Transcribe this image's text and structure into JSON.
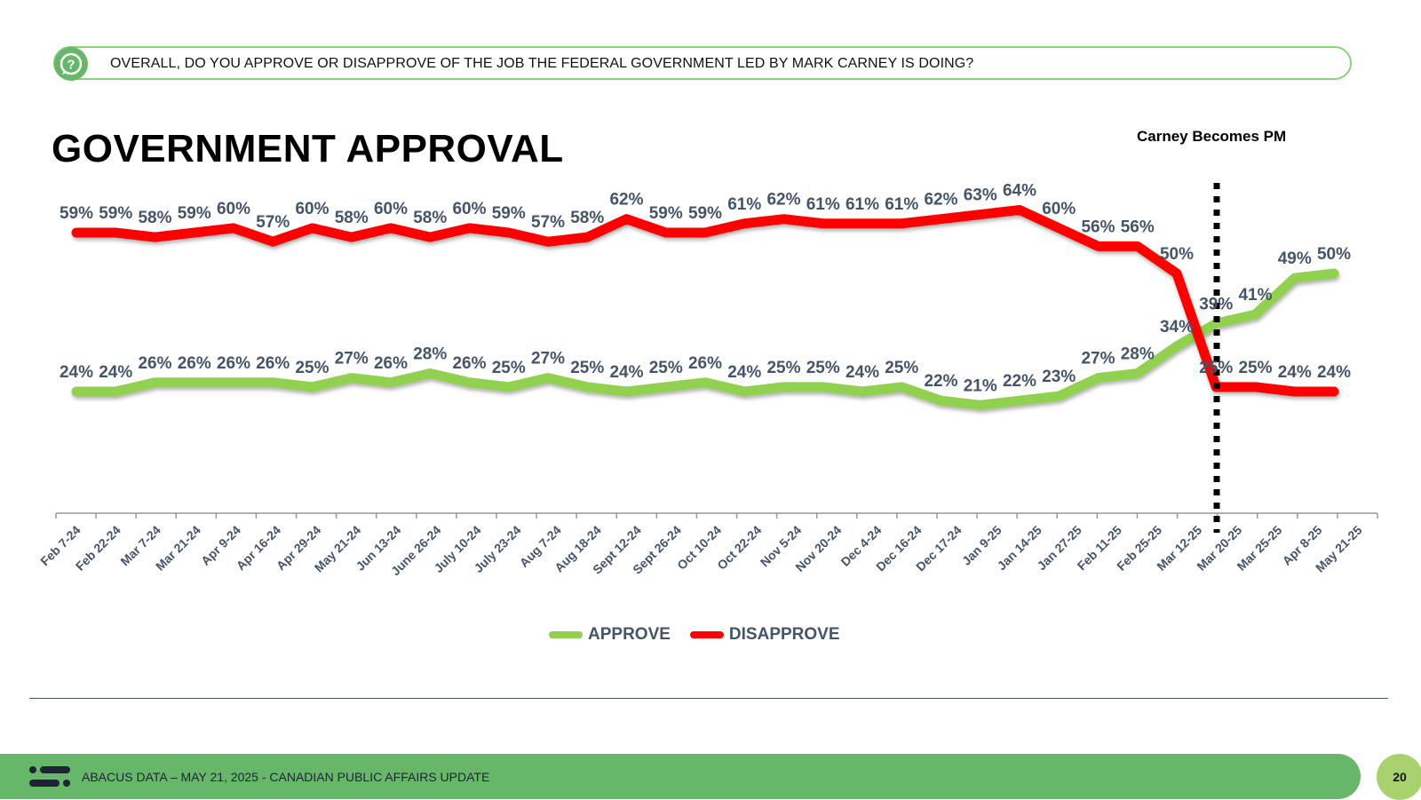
{
  "question": {
    "icon": "question-chat-icon",
    "text": "OVERALL, DO YOU APPROVE OR DISAPPROVE OF THE JOB THE FEDERAL GOVERNMENT LED BY MARK CARNEY IS DOING?"
  },
  "title": "GOVERNMENT APPROVAL",
  "annotation": {
    "label": "Carney Becomes PM",
    "position_between": [
      "Mar 12-25",
      "Mar 20-25"
    ]
  },
  "legend": {
    "approve": "APPROVE",
    "disapprove": "DISAPPROVE"
  },
  "colors": {
    "approve": "#92d050",
    "disapprove": "#ff0000",
    "labels": "#44546a",
    "footer": "#66b76a",
    "page_badge": "#a9d26f"
  },
  "footer": {
    "text": "ABACUS DATA – MAY 21, 2025 - CANADIAN PUBLIC AFFAIRS UPDATE",
    "page": "20"
  },
  "chart_data": {
    "type": "line",
    "title": "GOVERNMENT APPROVAL",
    "xlabel": "",
    "ylabel": "",
    "grid": false,
    "legend_position": "bottom",
    "categories": [
      "Feb 7-24",
      "Feb 22-24",
      "Mar 7-24",
      "Mar 21-24",
      "Apr 9-24",
      "Apr 16-24",
      "Apr 29-24",
      "May 21-24",
      "Jun 13-24",
      "June 26-24",
      "July 10-24",
      "July 23-24",
      "Aug 7-24",
      "Aug 18-24",
      "Sept 12-24",
      "Sept 26-24",
      "Oct 10-24",
      "Oct 22-24",
      "Nov 5-24",
      "Nov 20-24",
      "Dec 4-24",
      "Dec 16-24",
      "Dec 17-24",
      "Jan 9-25",
      "Jan 14-25",
      "Jan 27-25",
      "Feb 11-25",
      "Feb 25-25",
      "Mar 12-25",
      "Mar 20-25",
      "Mar 25-25",
      "Apr 8-25",
      "May 21-25"
    ],
    "series": [
      {
        "name": "APPROVE",
        "color": "#92d050",
        "values": [
          24,
          24,
          26,
          26,
          26,
          26,
          25,
          27,
          26,
          28,
          26,
          25,
          27,
          25,
          24,
          25,
          26,
          24,
          25,
          25,
          24,
          25,
          22,
          21,
          22,
          23,
          27,
          28,
          34,
          39,
          41,
          49,
          50
        ]
      },
      {
        "name": "DISAPPROVE",
        "color": "#ff0000",
        "values": [
          59,
          59,
          58,
          59,
          60,
          57,
          60,
          58,
          60,
          58,
          60,
          59,
          57,
          58,
          62,
          59,
          59,
          61,
          62,
          61,
          61,
          61,
          62,
          63,
          64,
          60,
          56,
          56,
          50,
          25,
          25,
          24,
          24
        ]
      }
    ],
    "annotations": [
      {
        "type": "vertical-dotted-line",
        "label": "Carney Becomes PM",
        "after_index": 28
      }
    ]
  }
}
